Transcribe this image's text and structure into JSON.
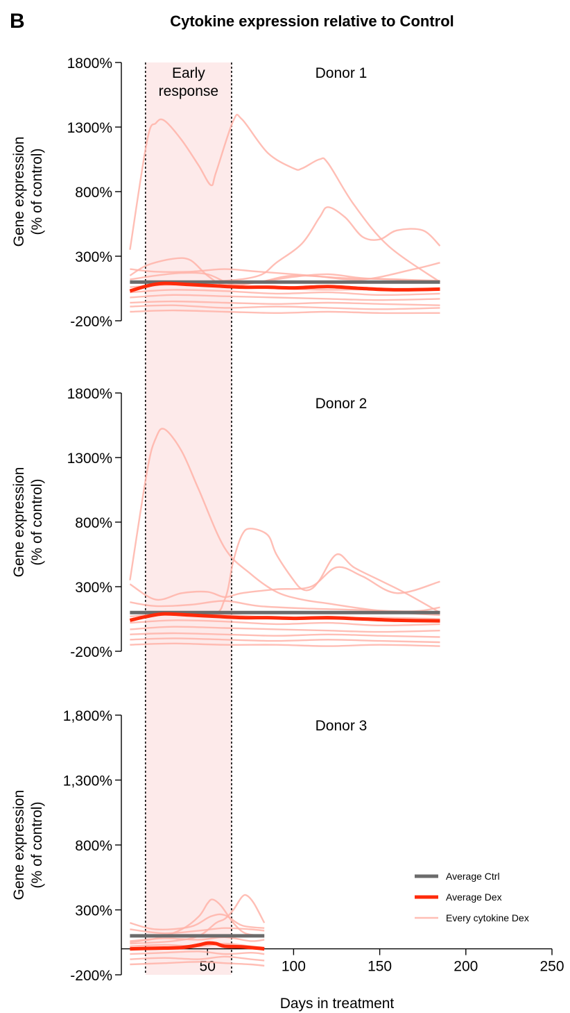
{
  "figure": {
    "panel_letter": "B",
    "title": "Cytokine expression relative to Control",
    "xlabel": "Days in treatment",
    "colors": {
      "ctrl": "#6b6b6b",
      "dex": "#ff2a0a",
      "cytokine": "#ffb3a8",
      "window_fill": "#fdeaea"
    },
    "early_window": {
      "start": 14,
      "end": 64,
      "label_lines": [
        "Early",
        "response"
      ]
    },
    "legend": [
      {
        "key": "ctrl",
        "label": "Average Ctrl"
      },
      {
        "key": "dex",
        "label": "Average Dex"
      },
      {
        "key": "cytokine",
        "label": "Every cytokine Dex"
      }
    ]
  },
  "chart_data": [
    {
      "type": "line",
      "name": "Donor 1",
      "label": "Donor 1",
      "ylabel_lines": [
        "Gene expression",
        "(% of control)"
      ],
      "ylim": [
        -200,
        1800
      ],
      "yticks": [
        1800,
        1300,
        800,
        300,
        -200
      ],
      "ytick_labels": [
        "1800%",
        "1300%",
        "800%",
        "300%",
        "-200%"
      ],
      "xlim": [
        5,
        185
      ],
      "xticks": [],
      "xtick_labels": [],
      "average_ctrl": {
        "x": [
          5,
          185
        ],
        "y": [
          100,
          100
        ]
      },
      "average_dex": {
        "x": [
          5,
          15,
          25,
          40,
          55,
          70,
          85,
          100,
          120,
          140,
          160,
          185
        ],
        "y": [
          30,
          70,
          90,
          80,
          70,
          60,
          60,
          55,
          65,
          50,
          40,
          45
        ]
      },
      "cytokines": [
        {
          "x": [
            5,
            15,
            20,
            25,
            35,
            45,
            52,
            55,
            65,
            70,
            85,
            100,
            105,
            115,
            120,
            135,
            155,
            185
          ],
          "y": [
            350,
            1200,
            1330,
            1350,
            1200,
            1000,
            850,
            950,
            1350,
            1360,
            1100,
            980,
            980,
            1050,
            1020,
            700,
            380,
            100
          ]
        },
        {
          "x": [
            5,
            30,
            60,
            80,
            90,
            105,
            115,
            120,
            130,
            140,
            150,
            160,
            175,
            185
          ],
          "y": [
            100,
            100,
            110,
            150,
            250,
            400,
            600,
            680,
            600,
            450,
            430,
            500,
            500,
            380
          ]
        },
        {
          "x": [
            5,
            15,
            30,
            40,
            50,
            60,
            80,
            100,
            130,
            160,
            185
          ],
          "y": [
            150,
            230,
            280,
            270,
            150,
            80,
            100,
            150,
            130,
            120,
            100
          ]
        },
        {
          "x": [
            5,
            20,
            40,
            60,
            80,
            110,
            140,
            170,
            185
          ],
          "y": [
            200,
            180,
            180,
            200,
            180,
            150,
            120,
            200,
            250
          ]
        },
        {
          "x": [
            5,
            20,
            35,
            50,
            65,
            80,
            100,
            120,
            140,
            160,
            185
          ],
          "y": [
            120,
            150,
            170,
            160,
            80,
            100,
            140,
            160,
            130,
            120,
            110
          ]
        },
        {
          "x": [
            5,
            30,
            60,
            90,
            120,
            150,
            185
          ],
          "y": [
            60,
            80,
            70,
            50,
            40,
            45,
            50
          ]
        },
        {
          "x": [
            5,
            30,
            60,
            90,
            120,
            150,
            185
          ],
          "y": [
            20,
            40,
            30,
            10,
            20,
            0,
            10
          ]
        },
        {
          "x": [
            5,
            30,
            60,
            90,
            120,
            150,
            185
          ],
          "y": [
            -20,
            0,
            -10,
            -20,
            -30,
            -40,
            -30
          ]
        },
        {
          "x": [
            5,
            30,
            60,
            90,
            120,
            150,
            185
          ],
          "y": [
            -60,
            -50,
            -60,
            -70,
            -60,
            -70,
            -80
          ]
        },
        {
          "x": [
            5,
            30,
            60,
            90,
            120,
            150,
            185
          ],
          "y": [
            -90,
            -80,
            -100,
            -90,
            -100,
            -110,
            -100
          ]
        },
        {
          "x": [
            5,
            30,
            60,
            90,
            120,
            150,
            185
          ],
          "y": [
            -130,
            -120,
            -130,
            -140,
            -130,
            -140,
            -140
          ]
        }
      ]
    },
    {
      "type": "line",
      "name": "Donor 2",
      "label": "Donor 2",
      "ylabel_lines": [
        "Gene expression",
        "(% of control)"
      ],
      "ylim": [
        -200,
        1800
      ],
      "yticks": [
        1800,
        1300,
        800,
        300,
        -200
      ],
      "ytick_labels": [
        "1800%",
        "1300%",
        "800%",
        "300%",
        "-200%"
      ],
      "xlim": [
        5,
        185
      ],
      "xticks": [],
      "xtick_labels": [],
      "average_ctrl": {
        "x": [
          5,
          185
        ],
        "y": [
          100,
          100
        ]
      },
      "average_dex": {
        "x": [
          5,
          15,
          25,
          40,
          55,
          70,
          85,
          100,
          120,
          140,
          160,
          185
        ],
        "y": [
          40,
          70,
          90,
          80,
          70,
          60,
          60,
          55,
          60,
          50,
          40,
          35
        ]
      },
      "cytokines": [
        {
          "x": [
            5,
            15,
            20,
            25,
            35,
            45,
            60,
            75,
            90,
            105,
            120,
            140,
            160,
            185
          ],
          "y": [
            350,
            1200,
            1450,
            1520,
            1350,
            1050,
            600,
            400,
            260,
            200,
            170,
            130,
            100,
            80
          ]
        },
        {
          "x": [
            5,
            50,
            60,
            65,
            70,
            75,
            85,
            90,
            100,
            105,
            110,
            115,
            125,
            135,
            150,
            165,
            185
          ],
          "y": [
            100,
            80,
            200,
            500,
            700,
            750,
            700,
            550,
            350,
            280,
            280,
            350,
            550,
            450,
            350,
            250,
            100
          ]
        },
        {
          "x": [
            5,
            20,
            35,
            50,
            60,
            70,
            90,
            110,
            125,
            140,
            160,
            185
          ],
          "y": [
            320,
            200,
            250,
            260,
            220,
            250,
            280,
            300,
            450,
            380,
            250,
            340
          ]
        },
        {
          "x": [
            5,
            20,
            40,
            60,
            80,
            110,
            140,
            170,
            185
          ],
          "y": [
            180,
            150,
            160,
            190,
            150,
            130,
            120,
            110,
            140
          ]
        },
        {
          "x": [
            5,
            30,
            60,
            90,
            120,
            150,
            185
          ],
          "y": [
            70,
            90,
            80,
            60,
            50,
            60,
            50
          ]
        },
        {
          "x": [
            5,
            30,
            60,
            90,
            120,
            150,
            185
          ],
          "y": [
            20,
            40,
            30,
            10,
            20,
            0,
            10
          ]
        },
        {
          "x": [
            5,
            30,
            60,
            90,
            120,
            150,
            185
          ],
          "y": [
            -30,
            -10,
            -20,
            -30,
            -40,
            -50,
            -40
          ]
        },
        {
          "x": [
            5,
            30,
            60,
            90,
            120,
            150,
            185
          ],
          "y": [
            -70,
            -60,
            -70,
            -80,
            -70,
            -80,
            -90
          ]
        },
        {
          "x": [
            5,
            30,
            60,
            90,
            120,
            150,
            185
          ],
          "y": [
            -110,
            -100,
            -110,
            -120,
            -110,
            -120,
            -130
          ]
        },
        {
          "x": [
            5,
            30,
            60,
            90,
            120,
            150,
            185
          ],
          "y": [
            -150,
            -140,
            -150,
            -150,
            -160,
            -150,
            -160
          ]
        }
      ]
    },
    {
      "type": "line",
      "name": "Donor 3",
      "label": "Donor 3",
      "ylabel_lines": [
        "Gene expression",
        "(% of control)"
      ],
      "ylim": [
        -200,
        1800
      ],
      "yticks": [
        1800,
        1300,
        800,
        300,
        -200
      ],
      "ytick_labels": [
        "1,800%",
        "1,300%",
        "800%",
        "300%",
        "-200%"
      ],
      "xlim": [
        5,
        250
      ],
      "xticks": [
        50,
        100,
        150,
        200,
        250
      ],
      "xtick_labels": [
        "50",
        "100",
        "150",
        "200",
        "250"
      ],
      "average_ctrl": {
        "x": [
          5,
          83
        ],
        "y": [
          100,
          100
        ]
      },
      "average_dex": {
        "x": [
          5,
          20,
          35,
          45,
          50,
          55,
          60,
          70,
          83
        ],
        "y": [
          0,
          5,
          10,
          30,
          45,
          40,
          20,
          15,
          0
        ]
      },
      "cytokines": [
        {
          "x": [
            5,
            20,
            35,
            45,
            50,
            53,
            58,
            65,
            72,
            83
          ],
          "y": [
            50,
            80,
            150,
            250,
            350,
            380,
            330,
            200,
            120,
            100
          ]
        },
        {
          "x": [
            5,
            30,
            45,
            55,
            60,
            65,
            70,
            73,
            77,
            83
          ],
          "y": [
            40,
            60,
            100,
            200,
            230,
            300,
            400,
            410,
            350,
            200
          ]
        },
        {
          "x": [
            5,
            20,
            40,
            52,
            60,
            70,
            83
          ],
          "y": [
            200,
            150,
            170,
            250,
            260,
            180,
            160
          ]
        },
        {
          "x": [
            5,
            25,
            45,
            60,
            75,
            83
          ],
          "y": [
            150,
            120,
            140,
            160,
            150,
            140
          ]
        },
        {
          "x": [
            5,
            25,
            45,
            60,
            75,
            83
          ],
          "y": [
            60,
            80,
            70,
            90,
            60,
            70
          ]
        },
        {
          "x": [
            5,
            25,
            45,
            60,
            75,
            83
          ],
          "y": [
            20,
            30,
            20,
            40,
            20,
            10
          ]
        },
        {
          "x": [
            5,
            25,
            45,
            60,
            75,
            83
          ],
          "y": [
            -40,
            -30,
            -20,
            -40,
            -30,
            -40
          ]
        },
        {
          "x": [
            5,
            25,
            45,
            60,
            75,
            83
          ],
          "y": [
            -80,
            -70,
            -80,
            -60,
            -80,
            -90
          ]
        },
        {
          "x": [
            5,
            25,
            45,
            60,
            75,
            83
          ],
          "y": [
            -120,
            -110,
            -100,
            -110,
            -120,
            -130
          ]
        }
      ]
    }
  ]
}
